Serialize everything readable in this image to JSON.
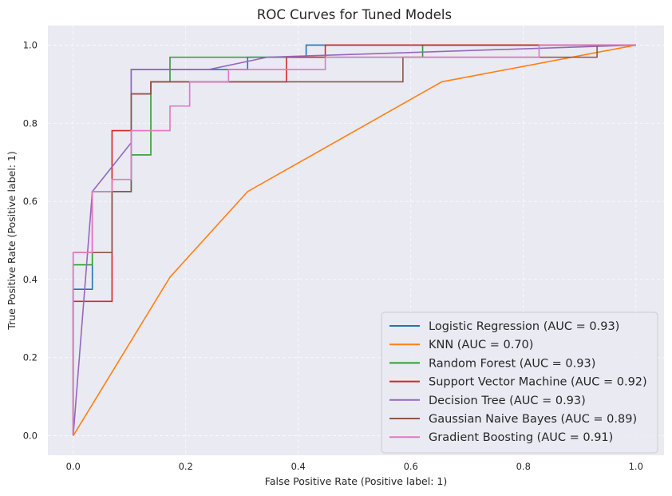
{
  "chart_data": {
    "type": "line",
    "title": "ROC Curves for Tuned Models",
    "xlabel": "False Positive Rate (Positive label: 1)",
    "ylabel": "True Positive Rate (Positive label: 1)",
    "xlim": [
      -0.045,
      1.05
    ],
    "ylim": [
      -0.05,
      1.05
    ],
    "xticks": [
      0.0,
      0.2,
      0.4,
      0.6,
      0.8,
      1.0
    ],
    "yticks": [
      0.0,
      0.2,
      0.4,
      0.6,
      0.8,
      1.0
    ],
    "xtick_labels": [
      "0.0",
      "0.2",
      "0.4",
      "0.6",
      "0.8",
      "1.0"
    ],
    "ytick_labels": [
      "0.0",
      "0.2",
      "0.4",
      "0.6",
      "0.8",
      "1.0"
    ],
    "grid": true,
    "legend_position": "lower-right",
    "background_color": "#eaeaf2",
    "series": [
      {
        "name": "Logistic Regression (AUC = 0.93)",
        "color": "#1f77b4",
        "x": [
          0,
          0,
          0.034,
          0.034,
          0.103,
          0.103,
          0.207,
          0.207,
          0.31,
          0.31,
          0.414,
          0.414,
          1.0
        ],
        "y": [
          0,
          0.375,
          0.375,
          0.625,
          0.625,
          0.9375,
          0.9375,
          0.9375,
          0.9375,
          0.969,
          0.969,
          1.0,
          1.0
        ]
      },
      {
        "name": "KNN (AUC = 0.70)",
        "color": "#ff7f0e",
        "x": [
          0,
          0.172,
          0.31,
          0.655,
          1.0
        ],
        "y": [
          0,
          0.406,
          0.625,
          0.906,
          1.0
        ]
      },
      {
        "name": "Random Forest (AUC = 0.93)",
        "color": "#2ca02c",
        "x": [
          0,
          0,
          0.034,
          0.034,
          0.103,
          0.103,
          0.138,
          0.138,
          0.172,
          0.172,
          0.345,
          0.345,
          0.621,
          0.621,
          1.0
        ],
        "y": [
          0,
          0.4375,
          0.4375,
          0.625,
          0.625,
          0.719,
          0.719,
          0.906,
          0.906,
          0.969,
          0.969,
          0.969,
          0.969,
          1.0,
          1.0
        ]
      },
      {
        "name": "Support Vector Machine (AUC = 0.92)",
        "color": "#d62728",
        "x": [
          0,
          0,
          0.069,
          0.069,
          0.103,
          0.103,
          0.138,
          0.138,
          0.379,
          0.379,
          0.448,
          0.448,
          1.0
        ],
        "y": [
          0,
          0.344,
          0.344,
          0.781,
          0.781,
          0.875,
          0.875,
          0.906,
          0.906,
          0.969,
          0.969,
          1.0,
          1.0
        ]
      },
      {
        "name": "Decision Tree (AUC = 0.93)",
        "color": "#9467bd",
        "x": [
          0,
          0.034,
          0.103,
          0.103,
          0.241,
          0.345,
          1.0
        ],
        "y": [
          0,
          0.625,
          0.75,
          0.9375,
          0.9375,
          0.969,
          1.0
        ]
      },
      {
        "name": "Gaussian Naive Bayes (AUC = 0.89)",
        "color": "#8c564b",
        "x": [
          0,
          0,
          0.034,
          0.034,
          0.069,
          0.069,
          0.103,
          0.103,
          0.138,
          0.138,
          0.586,
          0.586,
          0.931,
          0.931,
          1.0
        ],
        "y": [
          0,
          0.469,
          0.469,
          0.469,
          0.469,
          0.625,
          0.625,
          0.875,
          0.875,
          0.906,
          0.906,
          0.969,
          0.969,
          1.0,
          1.0
        ]
      },
      {
        "name": "Gradient Boosting (AUC = 0.91)",
        "color": "#e377c2",
        "x": [
          0,
          0,
          0.034,
          0.034,
          0.069,
          0.069,
          0.103,
          0.103,
          0.172,
          0.172,
          0.207,
          0.207,
          0.276,
          0.276,
          0.448,
          0.448,
          0.828,
          0.828,
          1.0
        ],
        "y": [
          0,
          0.469,
          0.469,
          0.625,
          0.625,
          0.656,
          0.656,
          0.781,
          0.781,
          0.844,
          0.844,
          0.906,
          0.906,
          0.9375,
          0.9375,
          0.969,
          0.969,
          1.0,
          1.0
        ]
      }
    ]
  }
}
